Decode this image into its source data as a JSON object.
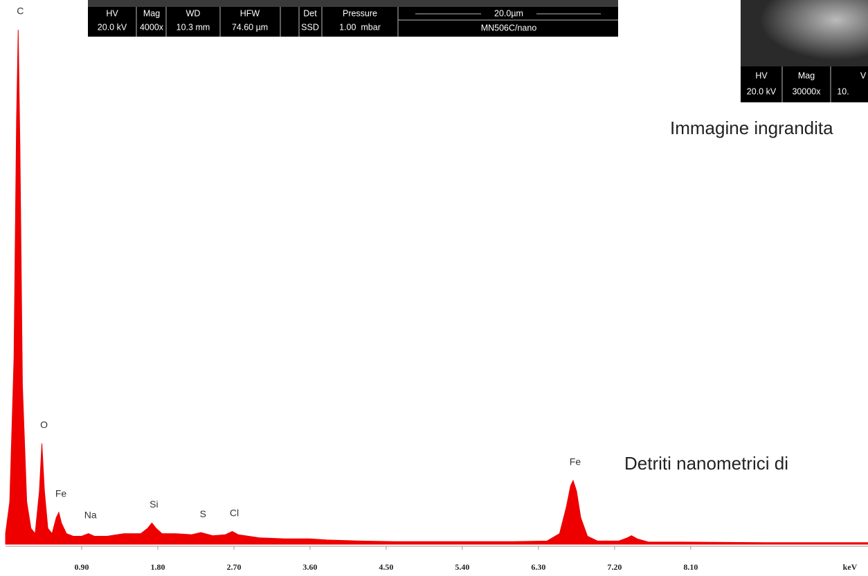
{
  "chart_data": {
    "type": "area",
    "x_label": "keV",
    "color": "#ee0000",
    "x": [
      0.0,
      0.05,
      0.1,
      0.13,
      0.15,
      0.17,
      0.2,
      0.25,
      0.3,
      0.35,
      0.4,
      0.43,
      0.46,
      0.5,
      0.55,
      0.6,
      0.63,
      0.66,
      0.72,
      0.8,
      0.9,
      0.98,
      1.05,
      1.2,
      1.4,
      1.6,
      1.68,
      1.73,
      1.78,
      1.85,
      2.0,
      2.2,
      2.31,
      2.45,
      2.6,
      2.68,
      2.75,
      3.0,
      3.3,
      3.6,
      3.8,
      4.2,
      4.6,
      5.0,
      5.5,
      6.0,
      6.4,
      6.55,
      6.63,
      6.68,
      6.71,
      6.75,
      6.8,
      6.88,
      7.0,
      7.25,
      7.35,
      7.4,
      7.47,
      7.6,
      8.0,
      9.0,
      10.2
    ],
    "values": [
      2,
      8,
      35,
      80,
      97,
      75,
      30,
      8,
      3,
      2,
      10,
      19,
      10,
      3,
      2,
      5,
      6,
      4,
      2,
      1.5,
      1.5,
      2,
      1.5,
      1.5,
      2,
      2,
      3,
      4,
      3,
      2,
      2,
      1.8,
      2.2,
      1.6,
      1.8,
      2.4,
      1.8,
      1.2,
      1,
      1,
      0.8,
      0.6,
      0.5,
      0.5,
      0.5,
      0.5,
      0.6,
      2,
      7,
      11,
      12,
      10,
      5,
      1.5,
      0.6,
      0.6,
      1.2,
      1.6,
      1,
      0.4,
      0.4,
      0.3,
      0.3
    ],
    "xlim": [
      0,
      10.2
    ],
    "ylim": [
      0,
      100
    ],
    "xticks": [
      {
        "value": 0.9,
        "label": "0.90"
      },
      {
        "value": 1.8,
        "label": "1.80"
      },
      {
        "value": 2.7,
        "label": "2.70"
      },
      {
        "value": 3.6,
        "label": "3.60"
      },
      {
        "value": 4.5,
        "label": "4.50"
      },
      {
        "value": 5.4,
        "label": "5.40"
      },
      {
        "value": 6.3,
        "label": "6.30"
      },
      {
        "value": 7.2,
        "label": "7.20"
      },
      {
        "value": 8.1,
        "label": "8.10"
      }
    ],
    "peak_labels": [
      {
        "text": "C",
        "x": 0.15
      },
      {
        "text": "O",
        "x": 0.43
      },
      {
        "text": "Fe",
        "x": 0.63
      },
      {
        "text": "Na",
        "x": 0.98
      },
      {
        "text": "Si",
        "x": 1.73
      },
      {
        "text": "S",
        "x": 2.31
      },
      {
        "text": "Cl",
        "x": 2.68
      },
      {
        "text": "Fe",
        "x": 6.71
      }
    ]
  },
  "insets": {
    "left": {
      "headers": [
        "HV",
        "Mag",
        "WD",
        "HFW",
        "Det",
        "Pressure"
      ],
      "values": [
        "20.0 kV",
        "4000x",
        "10.3 mm",
        "74.60 µm",
        "SSD",
        "1.00  mbar"
      ],
      "scale": "20.0µm",
      "sample": "MN506C/nano"
    },
    "right": {
      "headers": [
        "HV",
        "Mag",
        "V"
      ],
      "values": [
        "20.0 kV",
        "30000x",
        "10."
      ]
    }
  },
  "captions": [
    "Immagine ingrandita",
    "Detriti nanometrici di"
  ]
}
